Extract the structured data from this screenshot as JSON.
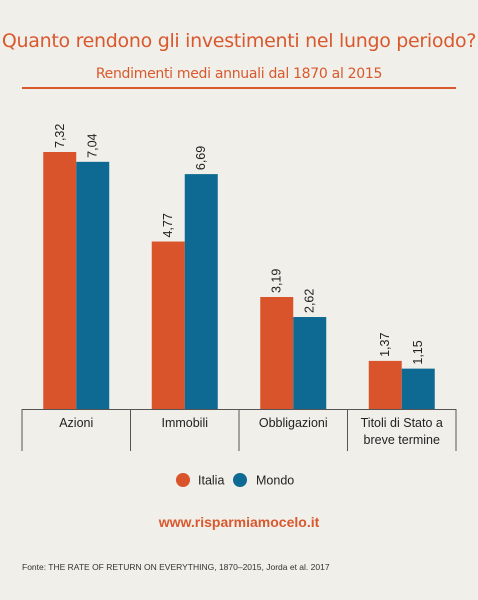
{
  "header": {
    "title": "Quanto rendono gli investimenti nel lungo periodo?",
    "subtitle": "Rendimenti medi annuali dal 1870 al 2015"
  },
  "footer": {
    "website": "www.risparmiamocelo.it",
    "source": "Fonte: THE RATE OF RETURN ON EVERYTHING, 1870–2015, Jorda et al. 2017"
  },
  "colors": {
    "italia": "#d9532b",
    "mondo": "#0e6a92",
    "accent": "#d9582e",
    "axis": "#555555"
  },
  "chart_data": {
    "type": "bar",
    "title": "Quanto rendono gli investimenti nel lungo periodo?",
    "subtitle": "Rendimenti medi annuali dal 1870 al 2015",
    "categories": [
      [
        "Azioni"
      ],
      [
        "Immobili"
      ],
      [
        "Obbligazioni"
      ],
      [
        "Titoli di Stato a",
        "breve termine"
      ]
    ],
    "series": [
      {
        "name": "Italia",
        "values": [
          7.32,
          4.77,
          3.19,
          1.37
        ],
        "labels": [
          "7,32",
          "4,77",
          "3,19",
          "1,37"
        ]
      },
      {
        "name": "Mondo",
        "values": [
          7.04,
          6.69,
          2.62,
          1.15
        ],
        "labels": [
          "7,04",
          "6,69",
          "2,62",
          "1,15"
        ]
      }
    ],
    "ylim": [
      0,
      7.32
    ],
    "grid": false,
    "legend": "bottom-center"
  }
}
